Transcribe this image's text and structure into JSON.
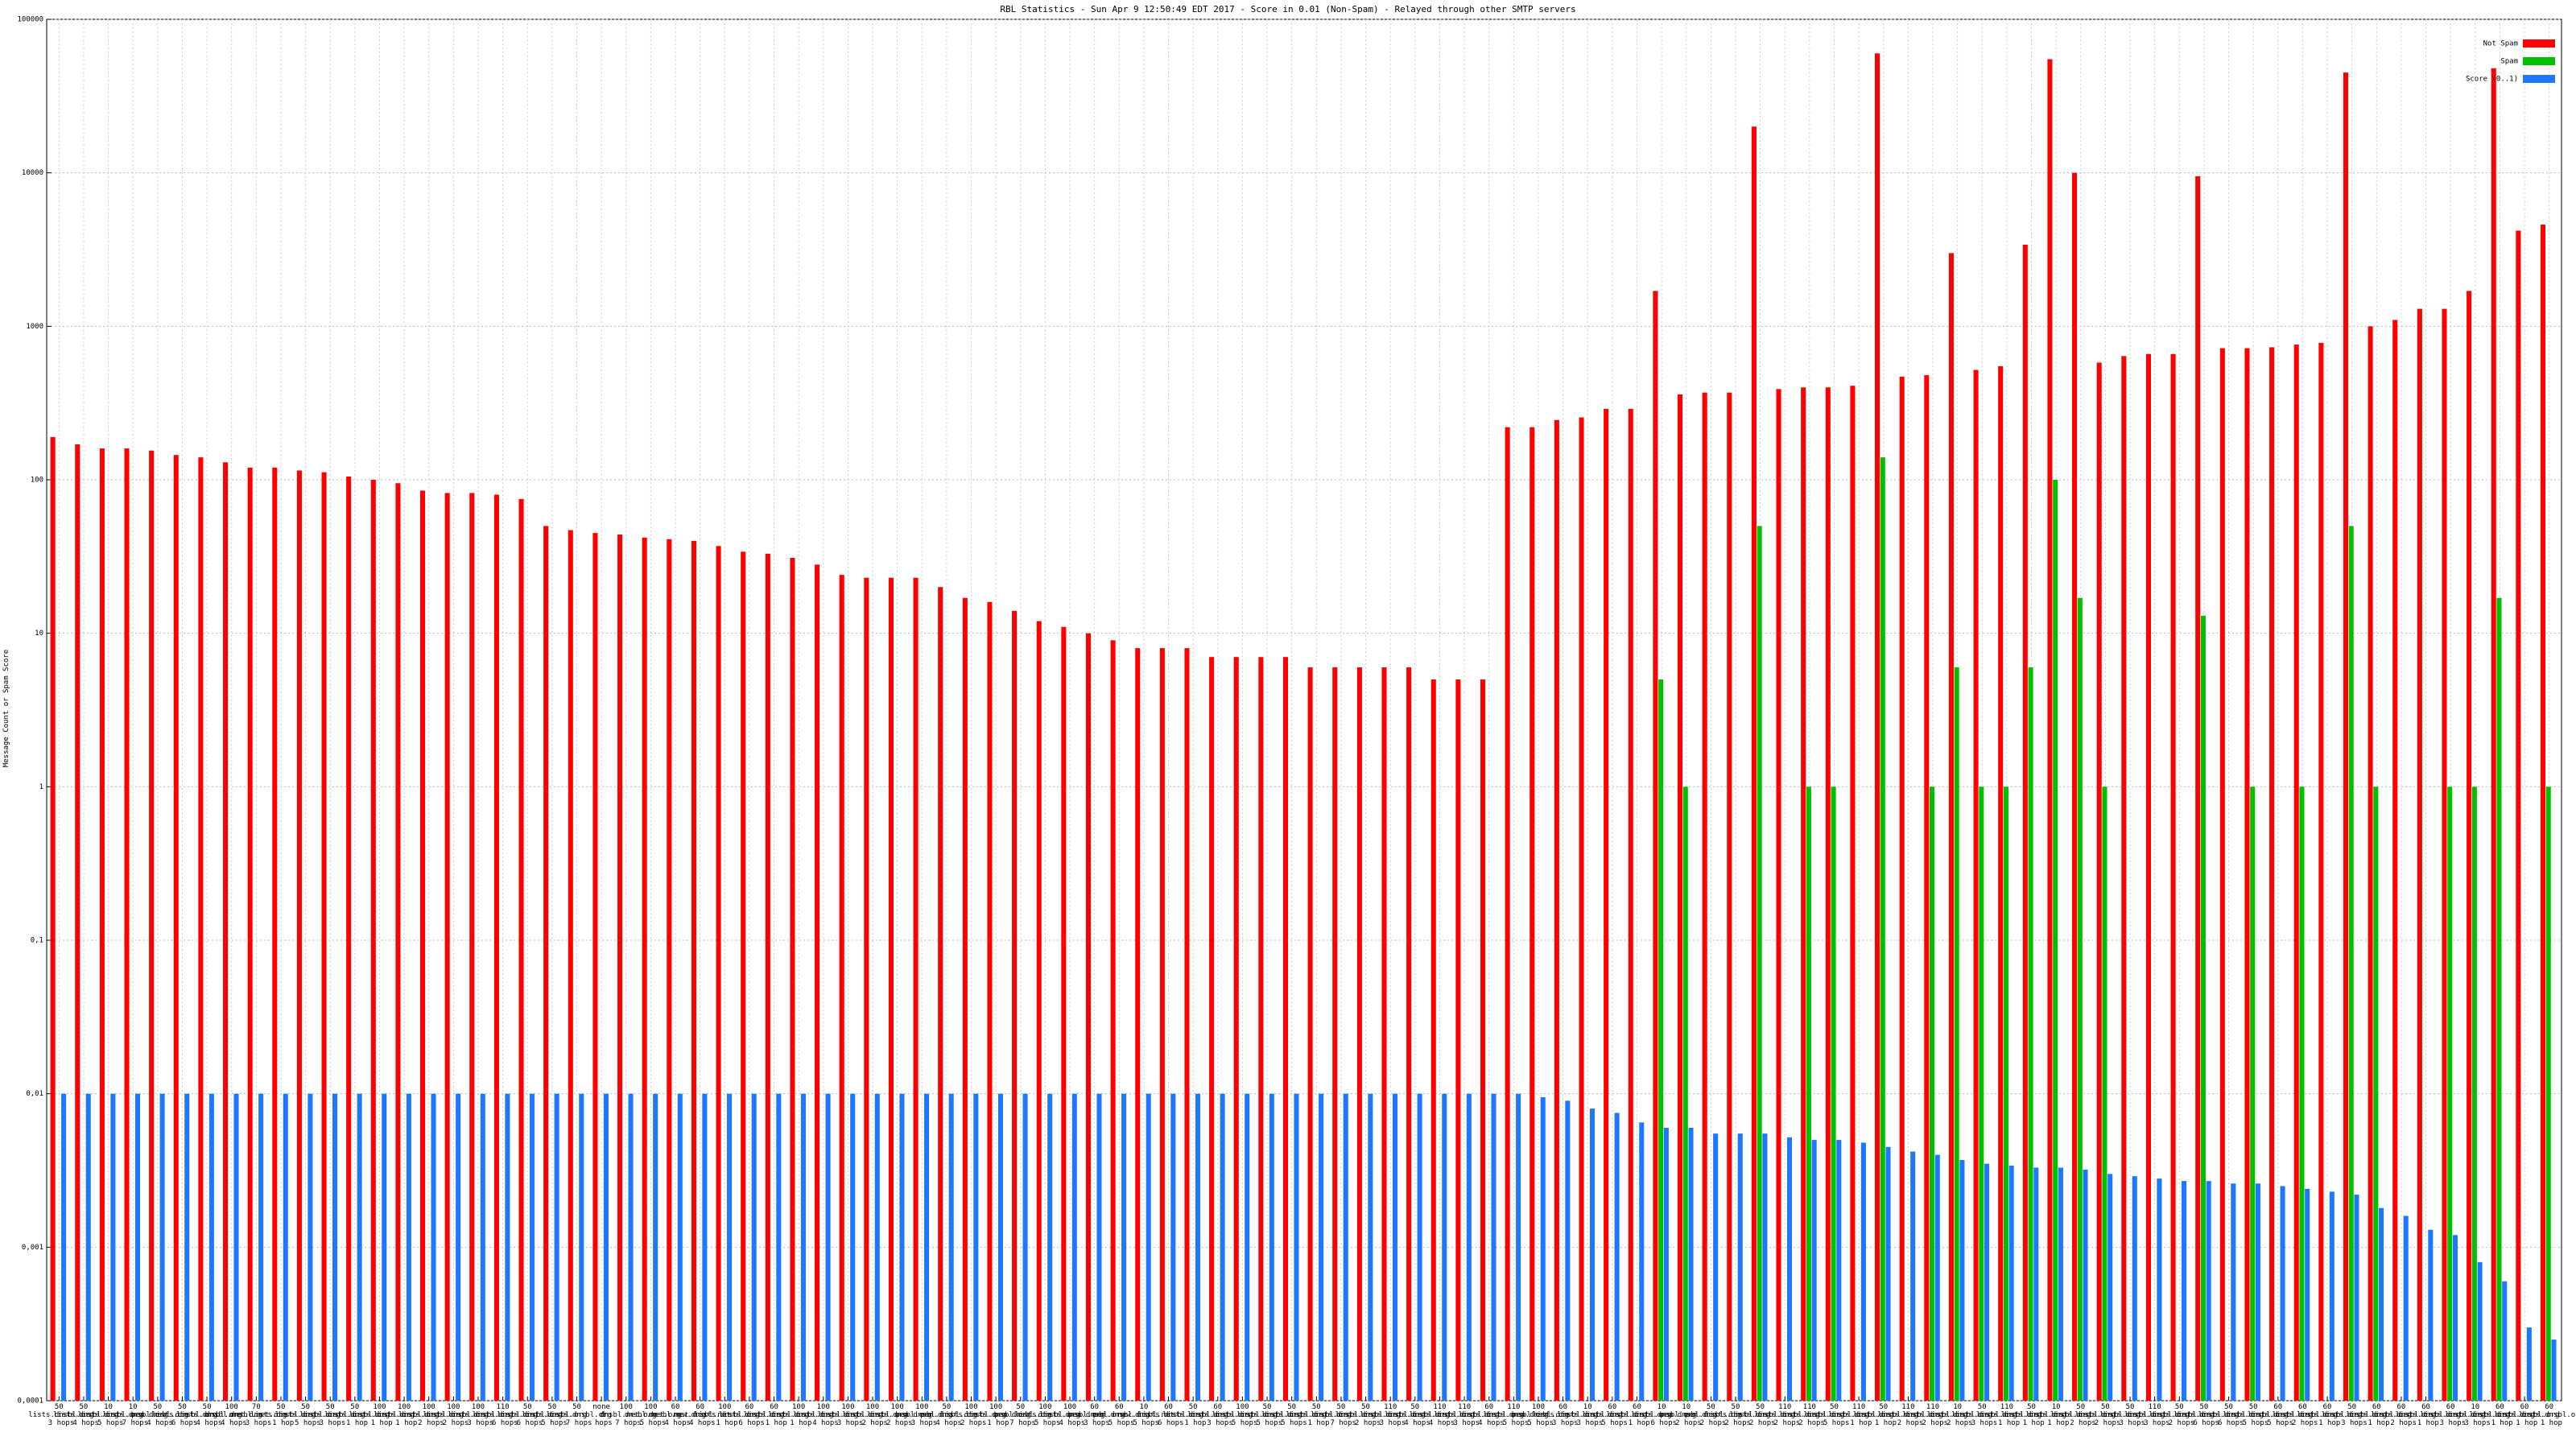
{
  "chart_data": {
    "type": "bar",
    "title": "RBL Statistics - Sun Apr  9 12:50:49 EDT 2017 - Score in 0.01 (Non-Spam) - Relayed through other SMTP servers",
    "y_label": "Message Count or Spam Score",
    "log_scale": true,
    "grid": true,
    "legend": "top-right",
    "ylim": [
      0.0001,
      100000
    ],
    "yticks": [
      {
        "value": 0.0001,
        "label": "0,0001"
      },
      {
        "value": 0.001,
        "label": "0,001"
      },
      {
        "value": 0.01,
        "label": "0,01"
      },
      {
        "value": 0.1,
        "label": "0,1"
      },
      1,
      10,
      100,
      1000,
      10000,
      100000
    ],
    "categories": [
      "50 lists.dnsbl.org 3 hops",
      "50 lists.dnsbl.org 4 hops",
      "10 lists.dnsbl.org 5 hops",
      "10 lists.dnsbl.org 7 hops",
      "50 pen.dnsbl.org 4 hops",
      "50 lists.dnsbl.org 6 hops",
      "50 lists.dnsbl.org 4 hops",
      "100 dnsbl.net.org 4 hops",
      "70 dnsbl.net.org 3 hops",
      "50 lists.dnsbl.org 1 hop",
      "50 lists.dnsbl.org 5 hops",
      "50 lists.dnsbl.org 3 hops",
      "50 lists.dnsbl.org 1 hop",
      "100 lists.dnsbl.org 1 hop",
      "100 lists.dnsbl.org 1 hop",
      "100 lists.dnsbl.org 2 hops",
      "100 lists.dnsbl.org 2 hops",
      "100 lists.dnsbl.org 3 hops",
      "110 lists.dnsbl.org 6 hops",
      "50 lists.dnsbl.org 6 hops",
      "50 lists.dnsbl.org 5 hops",
      "50 lists.dnsbl.org 7 hops",
      "none 5 hops",
      "100 dnsbl.net.org 7 hops",
      "100 dnsbl.net.org 5 hops",
      "60 dnsbl.net.org 4 hops",
      "60 new.dnsbl.net 4 hops",
      "100 lists.dnsbl.org 1 hop",
      "60 lists.dnsbl.org 6 hops",
      "60 lists.dnsbl.org 1 hop",
      "100 lists.dnsbl.org 1 hop",
      "100 lists.dnsbl.org 4 hops",
      "100 lists.dnsbl.org 3 hops",
      "100 lists.dnsbl.org 2 hops",
      "100 lists.dnsbl.org 2 hops",
      "100 pen.dnsbl.org 3 hops",
      "50 pen.dnsbl.org 4 hops",
      "100 lists.dnsbl.org 2 hops",
      "100 lists.dnsbl.org 1 hop",
      "50 pen.dnsbl.org 7 hops",
      "100 lists.dnsbl.org 5 hops",
      "100 lists.dnsbl.org 4 hops",
      "60 pen.dnsbl.org 3 hops",
      "60 pen.dnsbl.org 5 hops",
      "10 new.dnsbl.net 5 hops",
      "60 lists.dnsbl.org 6 hops",
      "50 lists.dnsbl.org 1 hop",
      "60 lists.dnsbl.org 3 hops",
      "100 lists.dnsbl.org 5 hops",
      "50 lists.dnsbl.org 5 hops",
      "50 lists.dnsbl.org 5 hops",
      "50 lists.dnsbl.org 1 hop",
      "50 lists.dnsbl.org 7 hops",
      "50 lists.dnsbl.org 2 hops",
      "110 lists.dnsbl.org 3 hops",
      "50 lists.dnsbl.org 4 hops",
      "110 lists.dnsbl.org 4 hops",
      "110 lists.dnsbl.org 3 hops",
      "60 lists.dnsbl.org 4 hops",
      "110 lists.dnsbl.org 5 hops",
      "100 pen.dnsbl.org 5 hops",
      "60 lists.dnsbl.org 3 hops",
      "10 lists.dnsbl.org 3 hops",
      "60 lists.dnsbl.org 5 hops",
      "60 lists.dnsbl.org 1 hop",
      "10 lists.dnsbl.org 6 hops",
      "10 pen.dnsbl.org 2 hops",
      "50 pen.dnsbl.org 2 hops",
      "50 lists.dnsbl.org 2 hops",
      "50 lists.dnsbl.org 2 hops",
      "110 lists.dnsbl.org 2 hops",
      "110 lists.dnsbl.org 2 hops",
      "50 lists.dnsbl.org 5 hops",
      "110 lists.dnsbl.org 1 hop",
      "50 lists.dnsbl.org 1 hop",
      "110 lists.dnsbl.org 2 hops",
      "110 lists.dnsbl.org 2 hops",
      "10 lists.dnsbl.org 2 hops",
      "50 lists.dnsbl.org 3 hops",
      "110 lists.dnsbl.org 1 hop",
      "50 lists.dnsbl.org 1 hop",
      "10 lists.dnsbl.org 1 hop",
      "50 lists.dnsbl.org 2 hops",
      "50 lists.dnsbl.org 2 hops",
      "50 lists.dnsbl.org 3 hops",
      "110 lists.dnsbl.org 3 hops",
      "50 lists.dnsbl.org 2 hops",
      "50 lists.dnsbl.org 6 hops",
      "50 lists.dnsbl.org 6 hops",
      "50 lists.dnsbl.org 5 hops",
      "60 lists.dnsbl.org 5 hops",
      "60 lists.dnsbl.org 2 hops",
      "60 lists.dnsbl.org 1 hop",
      "50 lists.dnsbl.org 3 hops",
      "60 lists.dnsbl.org 1 hop",
      "60 lists.dnsbl.org 2 hops",
      "60 lists.dnsbl.org 1 hop",
      "60 lists.dnsbl.org 3 hops",
      "10 lists.dnsbl.org 3 hops",
      "60 lists.dnsbl.org 1 hop",
      "60 lists.dnsbl.org 1 hop",
      "60 lists.dnsbl.org 1 hop"
    ],
    "series": [
      {
        "name": "Not Spam",
        "color": "#ff0000",
        "values": [
          190,
          170,
          160,
          160,
          155,
          145,
          140,
          130,
          120,
          120,
          115,
          112,
          105,
          100,
          95,
          85,
          82,
          82,
          80,
          75,
          50,
          47,
          45,
          44,
          42,
          41,
          40,
          37,
          34,
          33,
          31,
          28,
          24,
          23,
          23,
          23,
          20,
          17,
          16,
          14,
          12,
          11,
          10,
          9,
          8,
          8,
          8,
          7,
          7,
          7,
          7,
          6,
          6,
          6,
          6,
          6,
          5,
          5,
          5,
          220,
          220,
          245,
          255,
          290,
          290,
          1700,
          360,
          370,
          370,
          20000,
          390,
          400,
          400,
          410,
          60000,
          470,
          480,
          3000,
          520,
          550,
          3400,
          55000,
          10000,
          580,
          640,
          660,
          660,
          9500,
          720,
          720,
          730,
          760,
          780,
          45000,
          1000,
          1100,
          1300,
          1300,
          1700,
          48000,
          4200,
          4600
        ]
      },
      {
        "name": "Spam",
        "color": "#00c000",
        "values": [
          null,
          null,
          null,
          null,
          null,
          null,
          null,
          null,
          null,
          null,
          null,
          null,
          null,
          null,
          null,
          null,
          null,
          null,
          null,
          null,
          null,
          null,
          null,
          null,
          null,
          null,
          null,
          null,
          null,
          null,
          null,
          null,
          null,
          null,
          null,
          null,
          null,
          null,
          null,
          null,
          null,
          null,
          null,
          null,
          null,
          null,
          null,
          null,
          null,
          null,
          null,
          null,
          null,
          null,
          null,
          null,
          null,
          null,
          null,
          null,
          null,
          null,
          null,
          null,
          null,
          5,
          1,
          null,
          null,
          50,
          null,
          1,
          1,
          null,
          140,
          null,
          1,
          6,
          1,
          1,
          6,
          100,
          17,
          1,
          null,
          null,
          null,
          13,
          null,
          1,
          null,
          1,
          null,
          50,
          1,
          null,
          null,
          1,
          1,
          17,
          null,
          1
        ]
      },
      {
        "name": "Score (0..1)",
        "color": "#1e78ff",
        "values": [
          0.01,
          0.01,
          0.01,
          0.01,
          0.01,
          0.01,
          0.01,
          0.01,
          0.01,
          0.01,
          0.01,
          0.01,
          0.01,
          0.01,
          0.01,
          0.01,
          0.01,
          0.01,
          0.01,
          0.01,
          0.01,
          0.01,
          0.01,
          0.01,
          0.01,
          0.01,
          0.01,
          0.01,
          0.01,
          0.01,
          0.01,
          0.01,
          0.01,
          0.01,
          0.01,
          0.01,
          0.01,
          0.01,
          0.01,
          0.01,
          0.01,
          0.01,
          0.01,
          0.01,
          0.01,
          0.01,
          0.01,
          0.01,
          0.01,
          0.01,
          0.01,
          0.01,
          0.01,
          0.01,
          0.01,
          0.01,
          0.01,
          0.01,
          0.01,
          0.01,
          0.0095,
          0.009,
          0.008,
          0.0075,
          0.0065,
          0.006,
          0.006,
          0.0055,
          0.0055,
          0.0055,
          0.0052,
          0.005,
          0.005,
          0.0048,
          0.0045,
          0.0042,
          0.004,
          0.0037,
          0.0035,
          0.0034,
          0.0033,
          0.0033,
          0.0032,
          0.003,
          0.0029,
          0.0028,
          0.0027,
          0.0027,
          0.0026,
          0.0026,
          0.0025,
          0.0024,
          0.0023,
          0.0022,
          0.0018,
          0.0016,
          0.0013,
          0.0012,
          0.0008,
          0.0006,
          0.0003,
          0.00025
        ]
      }
    ]
  }
}
